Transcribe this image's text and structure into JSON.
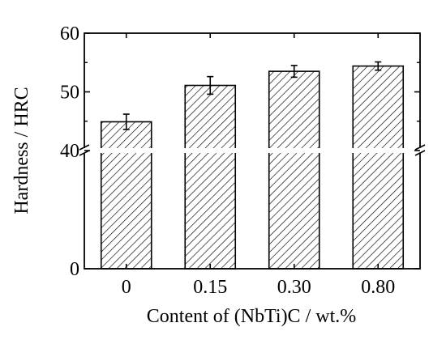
{
  "chart_data": {
    "type": "bar",
    "title": "",
    "xlabel": "Content of (NbTi)C / wt.%",
    "ylabel": "Hardness / HRC",
    "categories": [
      "0",
      "0.15",
      "0.30",
      "0.80"
    ],
    "values": [
      44.9,
      51.1,
      53.5,
      54.4
    ],
    "errors": [
      1.3,
      1.5,
      1.0,
      0.7
    ],
    "y_ticks": [
      {
        "value": 0,
        "label": "0"
      },
      {
        "value": 40,
        "label": "40"
      },
      {
        "value": 50,
        "label": "50"
      },
      {
        "value": 60,
        "label": "60"
      }
    ],
    "axis_break": {
      "lower_segment": [
        0,
        40
      ],
      "upper_segment": [
        40,
        60
      ]
    },
    "ylim": [
      0,
      60
    ],
    "grid": false,
    "legend": "none",
    "fill_pattern": "diagonal-hatch",
    "colors": {
      "bar_stroke": "#000000",
      "hatch": "#000000",
      "background": "#ffffff"
    }
  }
}
